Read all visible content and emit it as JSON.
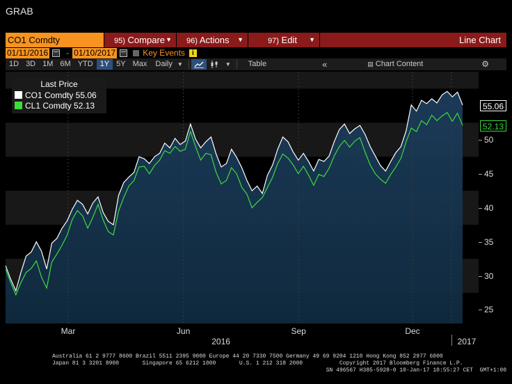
{
  "window": {
    "title": "GRAB"
  },
  "command_bar": {
    "ticker": "CO1 Comdty",
    "compare": {
      "num": "95)",
      "label": "Compare"
    },
    "actions": {
      "num": "96)",
      "label": "Actions"
    },
    "edit": {
      "num": "97)",
      "label": "Edit"
    },
    "chart_type": "Line Chart"
  },
  "date_range": {
    "start": "01/11/2016",
    "separator": "-",
    "end": "01/10/2017",
    "key_events_label": "Key Events"
  },
  "toolbar": {
    "periods": [
      "1D",
      "3D",
      "1M",
      "6M",
      "YTD",
      "1Y",
      "5Y",
      "Max"
    ],
    "active_period": "1Y",
    "frequency": "Daily",
    "table_label": "Table",
    "chart_content_label": "Chart Content"
  },
  "legend": {
    "title": "Last Price",
    "items": [
      {
        "label": "CO1 Comdty 55.06",
        "color": "#ffffff"
      },
      {
        "label": "CL1 Comdty 52.13",
        "color": "#3cdc3c"
      }
    ]
  },
  "price_tags": {
    "co1": "55.06",
    "cl1": "52.13"
  },
  "colors": {
    "accent": "#f7931e",
    "menu": "#8b1a1a",
    "co1": "#ffffff",
    "cl1": "#3cdc3c"
  },
  "chart_data": {
    "type": "line",
    "ylim": [
      23,
      60
    ],
    "yticks": [
      "25",
      "30",
      "35",
      "40",
      "45",
      "50"
    ],
    "xticks": [
      "Mar",
      "Jun",
      "Sep",
      "Dec"
    ],
    "years": [
      "2016",
      "2017"
    ],
    "grid": true,
    "legend_position": "top-left",
    "x_start": "2016-01-11",
    "x_end": "2017-01-10",
    "series": [
      {
        "name": "CO1 Comdty",
        "values": [
          31.5,
          29.5,
          27.8,
          30.5,
          32.9,
          33.5,
          35.0,
          33.6,
          31.0,
          34.8,
          35.5,
          37.0,
          38.1,
          39.8,
          41.1,
          40.5,
          39.1,
          40.7,
          41.6,
          39.3,
          38.0,
          37.5,
          41.8,
          43.7,
          44.5,
          45.2,
          47.5,
          47.2,
          46.5,
          47.5,
          48.0,
          49.5,
          48.8,
          50.2,
          49.3,
          49.8,
          52.3,
          50.1,
          48.8,
          49.7,
          50.4,
          47.9,
          46.0,
          46.5,
          48.6,
          47.4,
          45.9,
          44.0,
          42.5,
          43.2,
          42.1,
          44.8,
          46.3,
          48.6,
          50.4,
          49.7,
          48.2,
          47.0,
          48.0,
          46.8,
          45.4,
          47.1,
          46.8,
          47.6,
          49.7,
          51.5,
          52.3,
          50.9,
          51.6,
          52.1,
          50.8,
          49.0,
          47.6,
          46.2,
          45.4,
          46.8,
          48.1,
          49.0,
          51.3,
          55.1,
          54.2,
          55.8,
          55.3,
          56.0,
          55.4,
          56.6,
          57.1,
          56.3,
          57.0,
          55.1
        ],
        "color": "#ffffff"
      },
      {
        "name": "CL1 Comdty",
        "values": [
          31.0,
          29.0,
          27.2,
          29.0,
          30.5,
          31.1,
          32.2,
          29.8,
          28.2,
          32.0,
          33.2,
          34.5,
          36.0,
          38.3,
          39.6,
          38.8,
          37.0,
          38.6,
          40.5,
          38.2,
          36.5,
          36.0,
          39.5,
          41.5,
          43.2,
          44.0,
          46.0,
          46.1,
          45.0,
          46.2,
          47.0,
          48.4,
          48.0,
          49.0,
          48.3,
          48.6,
          51.2,
          49.0,
          47.0,
          48.0,
          47.8,
          45.2,
          43.5,
          44.0,
          45.9,
          45.0,
          43.0,
          42.0,
          40.0,
          40.8,
          41.5,
          43.0,
          44.5,
          46.5,
          47.9,
          47.3,
          46.3,
          45.0,
          46.1,
          44.8,
          43.3,
          44.9,
          44.6,
          45.8,
          47.6,
          49.0,
          49.9,
          48.9,
          49.8,
          50.3,
          48.2,
          46.3,
          45.0,
          44.2,
          43.6,
          44.9,
          46.0,
          47.3,
          49.7,
          51.7,
          51.2,
          52.8,
          52.2,
          53.6,
          52.8,
          53.5,
          54.0,
          52.7,
          53.9,
          52.1
        ],
        "color": "#3cdc3c"
      }
    ]
  },
  "footer": {
    "line1": "Australia 61 2 9777 8600 Brazil 5511 2395 9000 Europe 44 20 7330 7500 Germany 49 69 9204 1210 Hong Kong 852 2977 6000",
    "line2": "Japan 81 3 3201 8900       Singapore 65 6212 1000       U.S. 1 212 318 2000           Copyright 2017 Bloomberg Finance L.P.",
    "line3": "SN 496567 H385-5928-0 10-Jan-17 10:55:27 CET  GMT+1:00"
  }
}
